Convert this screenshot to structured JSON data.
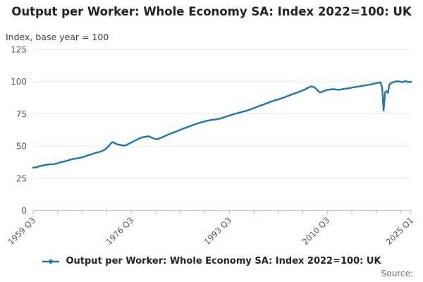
{
  "header": {
    "title": "Output per Worker: Whole Economy SA: Index 2022=100: UK",
    "subtitle": "Index, base year = 100"
  },
  "legend": {
    "label": "Output per Worker: Whole Economy SA: Index 2022=100: UK"
  },
  "source": {
    "label": "Source:"
  },
  "colors": {
    "series_blue": "#1b75bb",
    "gridline": "#e6e6e6",
    "axis": "#bfcddf",
    "tick_label": "#595959",
    "title_text": "#232323",
    "source_text": "#6d6e71"
  },
  "chart_data": {
    "type": "line",
    "title": "Output per Worker: Whole Economy SA: Index 2022=100: UK",
    "ylabel": "Index, base year = 100",
    "xlabel": "",
    "ylim": [
      0,
      125
    ],
    "yticks": [
      0,
      25,
      50,
      75,
      100,
      125
    ],
    "grid": "horizontal",
    "legend_position": "bottom",
    "x_unit": "quarters since 1959 Q3",
    "xlim": [
      0,
      262
    ],
    "minor_tick_every_quarters": 17,
    "xtick_labels": [
      {
        "q": 0,
        "label": "1959 Q3"
      },
      {
        "q": 68,
        "label": "1976 Q3"
      },
      {
        "q": 136,
        "label": "1993 Q3"
      },
      {
        "q": 204,
        "label": "2010 Q3"
      },
      {
        "q": 262,
        "label": "2025 Q1"
      }
    ],
    "series": [
      {
        "name": "Output per Worker: Whole Economy SA: Index 2022=100: UK",
        "color": "#1b75bb",
        "points": [
          [
            0,
            33.3
          ],
          [
            1,
            33.2
          ],
          [
            2,
            33.6
          ],
          [
            3,
            33.5
          ],
          [
            4,
            34.3
          ],
          [
            6,
            34.7
          ],
          [
            8,
            35.2
          ],
          [
            10,
            35.6
          ],
          [
            12,
            35.8
          ],
          [
            14,
            35.9
          ],
          [
            16,
            36.3
          ],
          [
            18,
            37.0
          ],
          [
            20,
            37.7
          ],
          [
            22,
            38.1
          ],
          [
            24,
            38.8
          ],
          [
            26,
            39.5
          ],
          [
            28,
            40.0
          ],
          [
            30,
            40.3
          ],
          [
            32,
            40.8
          ],
          [
            34,
            41.2
          ],
          [
            36,
            41.9
          ],
          [
            38,
            42.7
          ],
          [
            40,
            43.3
          ],
          [
            42,
            44.2
          ],
          [
            44,
            44.9
          ],
          [
            46,
            45.4
          ],
          [
            48,
            46.2
          ],
          [
            50,
            47.5
          ],
          [
            52,
            49.4
          ],
          [
            54,
            52.2
          ],
          [
            55,
            53.0
          ],
          [
            56,
            52.5
          ],
          [
            57,
            52.0
          ],
          [
            58,
            51.5
          ],
          [
            59,
            51.2
          ],
          [
            61,
            50.7
          ],
          [
            63,
            50.3
          ],
          [
            65,
            50.9
          ],
          [
            66,
            51.6
          ],
          [
            68,
            52.6
          ],
          [
            70,
            53.8
          ],
          [
            72,
            55.0
          ],
          [
            74,
            56.0
          ],
          [
            76,
            56.9
          ],
          [
            78,
            57.1
          ],
          [
            80,
            57.6
          ],
          [
            82,
            56.6
          ],
          [
            84,
            55.7
          ],
          [
            86,
            55.2
          ],
          [
            88,
            56.1
          ],
          [
            90,
            57.0
          ],
          [
            92,
            58.1
          ],
          [
            94,
            59.0
          ],
          [
            96,
            60.0
          ],
          [
            98,
            60.7
          ],
          [
            100,
            61.6
          ],
          [
            102,
            62.5
          ],
          [
            104,
            63.5
          ],
          [
            106,
            64.2
          ],
          [
            108,
            65.1
          ],
          [
            110,
            65.9
          ],
          [
            112,
            66.8
          ],
          [
            114,
            67.5
          ],
          [
            116,
            68.2
          ],
          [
            118,
            68.8
          ],
          [
            120,
            69.4
          ],
          [
            122,
            69.9
          ],
          [
            124,
            70.3
          ],
          [
            126,
            70.5
          ],
          [
            128,
            70.9
          ],
          [
            130,
            71.4
          ],
          [
            132,
            72.1
          ],
          [
            134,
            72.8
          ],
          [
            136,
            73.6
          ],
          [
            138,
            74.3
          ],
          [
            140,
            75.0
          ],
          [
            142,
            75.6
          ],
          [
            144,
            76.2
          ],
          [
            146,
            76.8
          ],
          [
            148,
            77.4
          ],
          [
            150,
            78.2
          ],
          [
            152,
            79.0
          ],
          [
            154,
            79.8
          ],
          [
            156,
            80.7
          ],
          [
            158,
            81.5
          ],
          [
            160,
            82.3
          ],
          [
            162,
            83.2
          ],
          [
            164,
            84.0
          ],
          [
            166,
            84.8
          ],
          [
            168,
            85.5
          ],
          [
            170,
            86.1
          ],
          [
            172,
            86.9
          ],
          [
            174,
            87.7
          ],
          [
            176,
            88.6
          ],
          [
            178,
            89.4
          ],
          [
            180,
            90.3
          ],
          [
            182,
            91.0
          ],
          [
            184,
            91.9
          ],
          [
            186,
            92.7
          ],
          [
            188,
            93.6
          ],
          [
            190,
            94.8
          ],
          [
            191,
            95.4
          ],
          [
            192,
            95.9
          ],
          [
            193,
            96.3
          ],
          [
            194,
            96.0
          ],
          [
            195,
            95.5
          ],
          [
            196,
            94.5
          ],
          [
            197,
            93.4
          ],
          [
            198,
            92.2
          ],
          [
            199,
            91.5
          ],
          [
            200,
            91.9
          ],
          [
            201,
            92.4
          ],
          [
            202,
            92.9
          ],
          [
            203,
            93.2
          ],
          [
            204,
            93.6
          ],
          [
            206,
            93.8
          ],
          [
            208,
            94.1
          ],
          [
            210,
            93.9
          ],
          [
            212,
            93.6
          ],
          [
            214,
            94.0
          ],
          [
            216,
            94.4
          ],
          [
            218,
            94.7
          ],
          [
            220,
            95.1
          ],
          [
            222,
            95.5
          ],
          [
            224,
            95.9
          ],
          [
            226,
            96.2
          ],
          [
            228,
            96.6
          ],
          [
            230,
            97.0
          ],
          [
            232,
            97.4
          ],
          [
            234,
            97.7
          ],
          [
            236,
            98.3
          ],
          [
            238,
            98.8
          ],
          [
            240,
            99.2
          ],
          [
            241,
            99.3
          ],
          [
            242,
            95.0
          ],
          [
            243,
            77.5
          ],
          [
            244,
            91.5
          ],
          [
            245,
            92.6
          ],
          [
            246,
            91.2
          ],
          [
            247,
            97.6
          ],
          [
            248,
            98.7
          ],
          [
            249,
            99.1
          ],
          [
            250,
            99.6
          ],
          [
            251,
            99.9
          ],
          [
            252,
            100.3
          ],
          [
            253,
            100.1
          ],
          [
            254,
            100.0
          ],
          [
            255,
            99.7
          ],
          [
            256,
            99.5
          ],
          [
            257,
            99.9
          ],
          [
            258,
            100.4
          ],
          [
            259,
            100.0
          ],
          [
            260,
            99.7
          ],
          [
            261,
            99.6
          ],
          [
            262,
            99.9
          ]
        ]
      }
    ]
  }
}
